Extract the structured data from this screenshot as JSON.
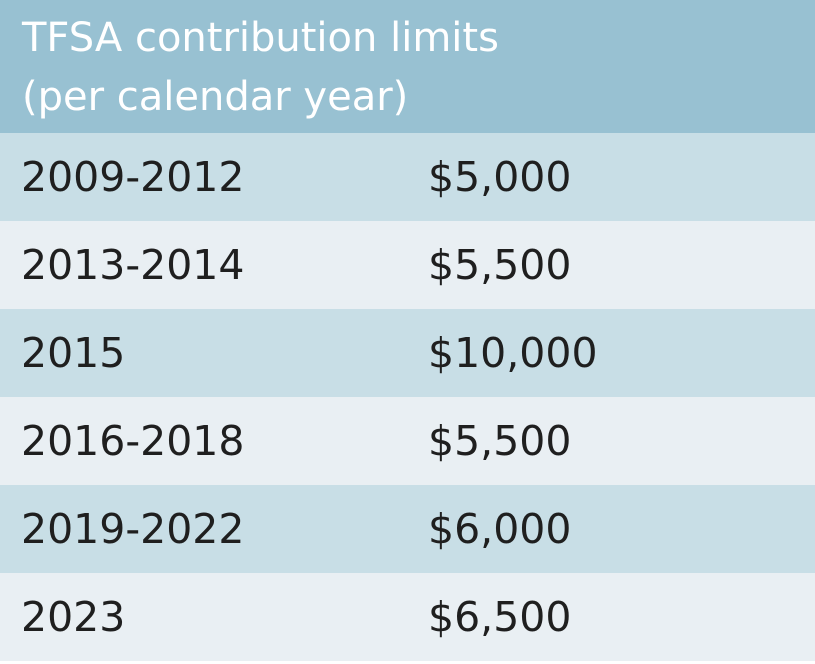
{
  "header": {
    "line1": "TFSA contribution limits",
    "line2": "(per calendar year)"
  },
  "rows": [
    {
      "year": "2009-2012",
      "amount": "$5,000"
    },
    {
      "year": "2013-2014",
      "amount": "$5,500"
    },
    {
      "year": "2015",
      "amount": "$10,000"
    },
    {
      "year": "2016-2018",
      "amount": "$5,500"
    },
    {
      "year": "2019-2022",
      "amount": "$6,000"
    },
    {
      "year": "2023",
      "amount": "$6,500"
    }
  ],
  "colors": {
    "header_bg": "#98c1d2",
    "row_dark": "#c8dee6",
    "row_light": "#e9eff3",
    "header_text": "#ffffff",
    "body_text": "#1f1f1f"
  }
}
